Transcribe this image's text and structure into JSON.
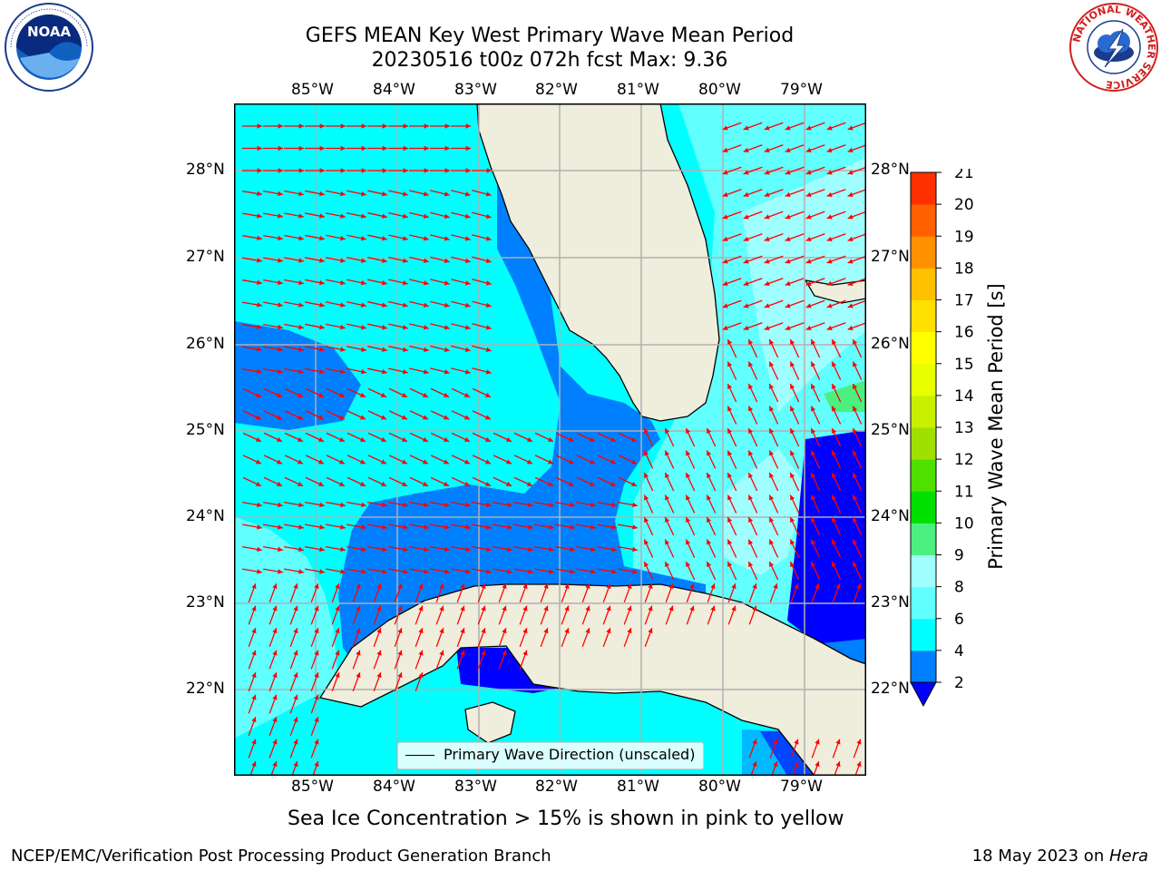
{
  "header": {
    "title_line1": "GEFS MEAN Key West Primary Wave Mean Period",
    "title_line2": "20230516 t00z 072h fcst   Max: 9.36"
  },
  "logos": {
    "left": {
      "name": "noaa-logo",
      "label": "NOAA"
    },
    "right": {
      "name": "nws-logo",
      "ring_text": "NATIONAL WEATHER SERVICE"
    }
  },
  "map": {
    "lon_labels": [
      "85°W",
      "84°W",
      "83°W",
      "82°W",
      "81°W",
      "80°W",
      "79°W"
    ],
    "lat_labels": [
      "28°N",
      "27°N",
      "26°N",
      "25°N",
      "24°N",
      "23°N",
      "22°N"
    ],
    "legend_label": "Primary Wave Direction (unscaled)",
    "colors": {
      "land": "#efeddc",
      "level_2_4": "#0080ff",
      "level_4_6": "#00ffff",
      "level_6_8": "#62ffff",
      "level_8_9": "#9fffff",
      "level_lt2": "#0000ff",
      "level_9_10": "#4cf080",
      "arrow": "#ff0000",
      "coast": "#000000",
      "grid": "#b0b0b0"
    }
  },
  "colorbar": {
    "label": "Primary Wave Mean Period [s]",
    "ticks": [
      "2",
      "4",
      "6",
      "8",
      "9",
      "10",
      "11",
      "12",
      "13",
      "14",
      "15",
      "16",
      "17",
      "18",
      "19",
      "20",
      "21"
    ],
    "colors": [
      "#0080ff",
      "#00ffff",
      "#62ffff",
      "#9fffff",
      "#4cf080",
      "#00e000",
      "#50e000",
      "#a0e000",
      "#c8f000",
      "#e8ff00",
      "#ffff00",
      "#ffe000",
      "#ffc000",
      "#ff9000",
      "#ff6000",
      "#ff3000",
      "#ff0000"
    ],
    "under_color": "#0000ff"
  },
  "footer": {
    "ice_note": "Sea Ice Concentration > 15% is shown in pink to yellow",
    "branch": "NCEP/EMC/Verification Post Processing Product Generation Branch",
    "date_prefix": "18 May 2023 on ",
    "machine": "Hera"
  }
}
